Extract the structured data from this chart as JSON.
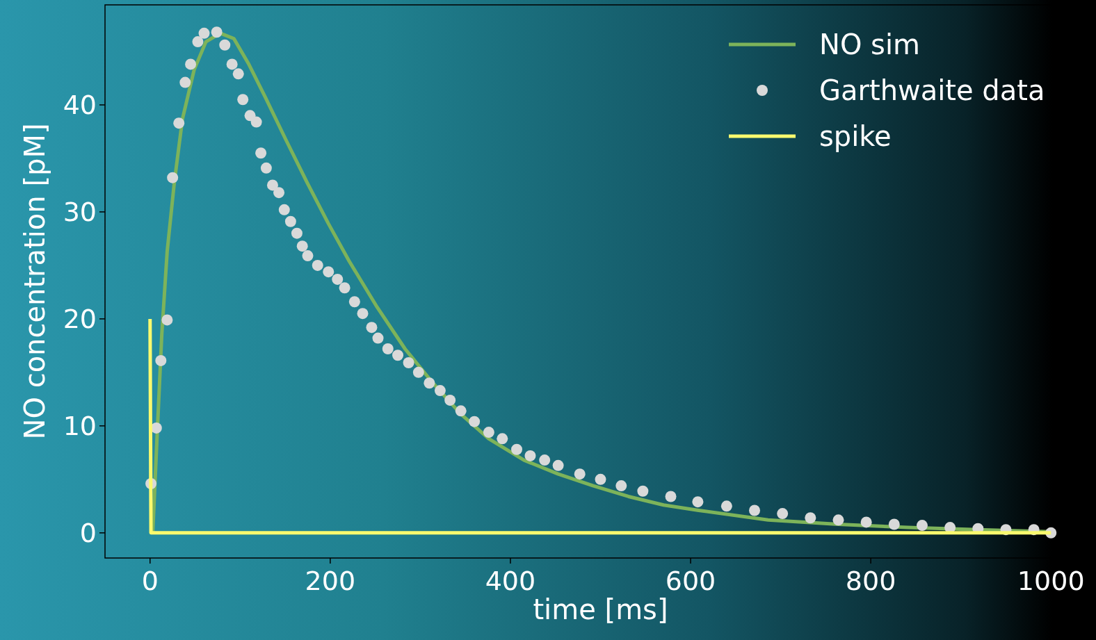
{
  "chart_data": {
    "type": "line",
    "xlabel": "time [ms]",
    "ylabel": "NO concentration [pM]",
    "xlim": [
      -50,
      1050
    ],
    "ylim": [
      -2.35,
      49.35
    ],
    "xticks": [
      0,
      200,
      400,
      600,
      800,
      1000
    ],
    "yticks": [
      0,
      10,
      20,
      30,
      40
    ],
    "grid": false,
    "legend": "top right",
    "series": [
      {
        "name": "NO sim",
        "color": "#7db35a",
        "x": [
          3,
          8,
          13,
          19,
          27,
          36,
          49,
          62,
          78,
          93,
          109,
          128,
          151,
          174,
          198,
          221,
          252,
          283,
          314,
          345,
          376,
          415,
          453,
          492,
          531,
          570,
          609,
          686,
          764,
          841,
          919,
          1000
        ],
        "values": [
          0,
          9.4,
          18.5,
          26.3,
          32.8,
          38.7,
          43.3,
          45.9,
          46.7,
          46.2,
          43.9,
          40.7,
          36.7,
          32.8,
          28.9,
          25.4,
          21.1,
          17.2,
          14,
          11.1,
          8.8,
          6.8,
          5.5,
          4.4,
          3.4,
          2.6,
          2.1,
          1.2,
          0.8,
          0.5,
          0.3,
          0.1
        ]
      },
      {
        "name": "Garthwaite data",
        "type": "scatter",
        "marker": "circle",
        "color": "#d9d9d9",
        "x": [
          1,
          7,
          12,
          19,
          25,
          32,
          39,
          45,
          53,
          60,
          74,
          83,
          91,
          98,
          103,
          111,
          118,
          123,
          129,
          136,
          143,
          149,
          156,
          163,
          169,
          175,
          186,
          198,
          208,
          216,
          227,
          236,
          246,
          253,
          264,
          275,
          287,
          298,
          310,
          322,
          333,
          345,
          360,
          376,
          391,
          407,
          422,
          438,
          453,
          477,
          500,
          523,
          547,
          578,
          608,
          640,
          671,
          702,
          733,
          764,
          795,
          826,
          857,
          888,
          919,
          950,
          981,
          1000
        ],
        "values": [
          4.6,
          9.8,
          16.1,
          19.9,
          33.2,
          38.3,
          42.1,
          43.8,
          45.9,
          46.7,
          46.8,
          45.6,
          43.8,
          42.9,
          40.5,
          39,
          38.4,
          35.5,
          34.1,
          32.5,
          31.8,
          30.2,
          29.1,
          28,
          26.8,
          25.9,
          25,
          24.4,
          23.7,
          22.9,
          21.6,
          20.5,
          19.2,
          18.2,
          17.2,
          16.6,
          15.9,
          15,
          14,
          13.3,
          12.4,
          11.4,
          10.4,
          9.4,
          8.8,
          7.8,
          7.2,
          6.8,
          6.3,
          5.5,
          5,
          4.4,
          3.9,
          3.4,
          2.9,
          2.5,
          2.1,
          1.8,
          1.4,
          1.2,
          1,
          0.8,
          0.7,
          0.5,
          0.4,
          0.3,
          0.3,
          0
        ]
      },
      {
        "name": "spike",
        "color": "#fafa6e",
        "x": [
          0,
          1,
          1000
        ],
        "values": [
          20,
          0,
          0
        ]
      }
    ]
  }
}
